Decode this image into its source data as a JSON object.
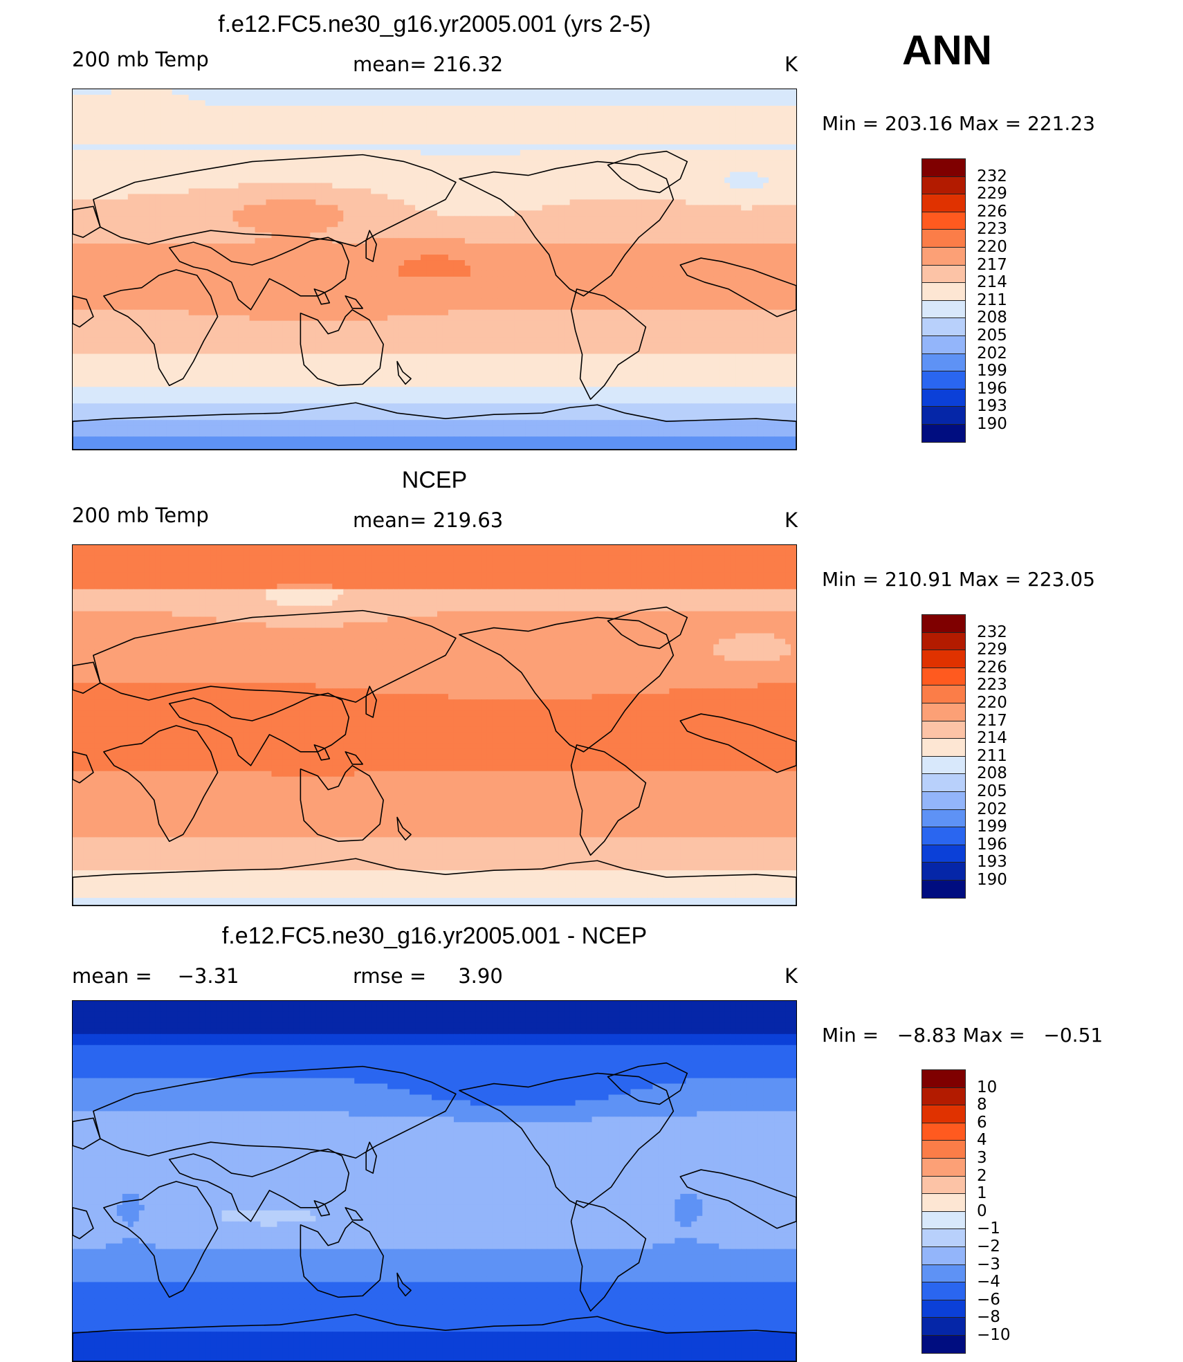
{
  "season": "ANN",
  "panels": [
    {
      "title": "f.e12.FC5.ne30_g16.yr2005.001 (yrs 2-5)",
      "left_label": "200 mb Temp",
      "center_label": "mean= 216.32",
      "units": "K",
      "min_max": "Min = 203.16 Max = 221.23",
      "colorbar": {
        "colors": [
          "#7f0000",
          "#b31b00",
          "#e03200",
          "#ff5a1f",
          "#fb7d48",
          "#fca076",
          "#fcc3a6",
          "#fde6d3",
          "#d8e8fb",
          "#b8d0fb",
          "#93b5fa",
          "#5e92f5",
          "#2a66f0",
          "#0b40d8",
          "#0526a8",
          "#000d80"
        ],
        "labels": [
          "232",
          "229",
          "226",
          "223",
          "220",
          "217",
          "214",
          "211",
          "208",
          "205",
          "202",
          "199",
          "196",
          "193",
          "190"
        ]
      },
      "field": "model"
    },
    {
      "title": "NCEP",
      "left_label": "200 mb Temp",
      "center_label": "mean= 219.63",
      "units": "K",
      "min_max": "Min = 210.91 Max = 223.05",
      "colorbar": {
        "colors": [
          "#7f0000",
          "#b31b00",
          "#e03200",
          "#ff5a1f",
          "#fb7d48",
          "#fca076",
          "#fcc3a6",
          "#fde6d3",
          "#d8e8fb",
          "#b8d0fb",
          "#93b5fa",
          "#5e92f5",
          "#2a66f0",
          "#0b40d8",
          "#0526a8",
          "#000d80"
        ],
        "labels": [
          "232",
          "229",
          "226",
          "223",
          "220",
          "217",
          "214",
          "211",
          "208",
          "205",
          "202",
          "199",
          "196",
          "193",
          "190"
        ]
      },
      "field": "ncep"
    },
    {
      "title": "f.e12.FC5.ne30_g16.yr2005.001 - NCEP",
      "left_label": "mean =    −3.31",
      "center_label": "rmse =     3.90",
      "units": "K",
      "min_max": "Min =   −8.83 Max =   −0.51",
      "colorbar": {
        "colors": [
          "#7f0000",
          "#b31b00",
          "#e03200",
          "#ff5a1f",
          "#fb7d48",
          "#fca076",
          "#fcc3a6",
          "#fde6d3",
          "#d8e8fb",
          "#b8d0fb",
          "#93b5fa",
          "#5e92f5",
          "#2a66f0",
          "#0b40d8",
          "#0526a8",
          "#000d80"
        ],
        "labels": [
          "10",
          "8",
          "6",
          "4",
          "3",
          "2",
          "1",
          "0",
          "−1",
          "−2",
          "−3",
          "−4",
          "−6",
          "−8",
          "−10"
        ]
      },
      "field": "diff"
    }
  ]
}
